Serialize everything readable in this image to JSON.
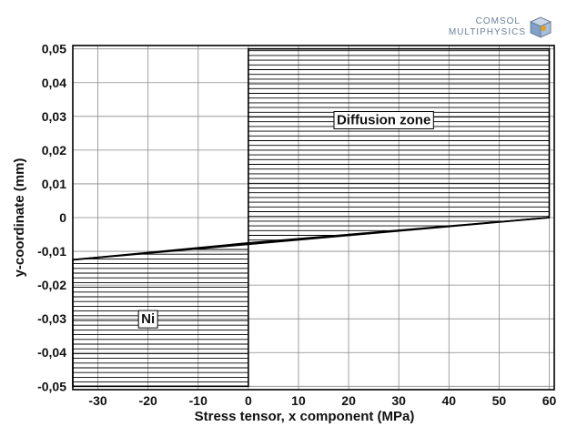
{
  "logo": {
    "line1": "COMSOL",
    "line2": "MULTIPHYSICS"
  },
  "chart_data": {
    "type": "area",
    "xlabel": "Stress tensor, x component (MPa)",
    "ylabel": "y-coordinate (mm)",
    "xlim": [
      -35,
      61
    ],
    "ylim": [
      -0.051,
      0.051
    ],
    "x_ticks": [
      -30,
      -20,
      -10,
      0,
      10,
      20,
      30,
      40,
      50,
      60
    ],
    "x_tick_labels": [
      "-30",
      "-20",
      "-10",
      "0",
      "10",
      "20",
      "30",
      "40",
      "50",
      "60"
    ],
    "y_ticks": [
      0.05,
      0.04,
      0.03,
      0.02,
      0.01,
      0,
      -0.01,
      -0.02,
      -0.03,
      -0.04,
      -0.05
    ],
    "y_tick_labels": [
      "0,05",
      "0,04",
      "0,03",
      "0,02",
      "0,01",
      "0",
      "-0,01",
      "-0,02",
      "-0,03",
      "-0,04",
      "-0,05"
    ],
    "grid": true,
    "series": [
      {
        "points": [
          [
            -35,
            -0.0125
          ],
          [
            60,
            0.0
          ]
        ]
      }
    ],
    "regions": [
      {
        "label": "Diffusion zone",
        "polygon": [
          [
            0,
            0.05
          ],
          [
            60,
            0.05
          ],
          [
            60,
            0.0
          ],
          [
            0,
            -0.0075
          ]
        ],
        "label_at": [
          27,
          0.029
        ]
      },
      {
        "label": "Ni",
        "polygon": [
          [
            -35,
            -0.05
          ],
          [
            0,
            -0.05
          ],
          [
            0,
            -0.0075
          ],
          [
            -35,
            -0.0125
          ]
        ],
        "label_at": [
          -20,
          -0.03
        ]
      }
    ],
    "colors": {
      "line": "#000000",
      "grid": "#8a8a8a",
      "hatch": "#000000"
    }
  }
}
